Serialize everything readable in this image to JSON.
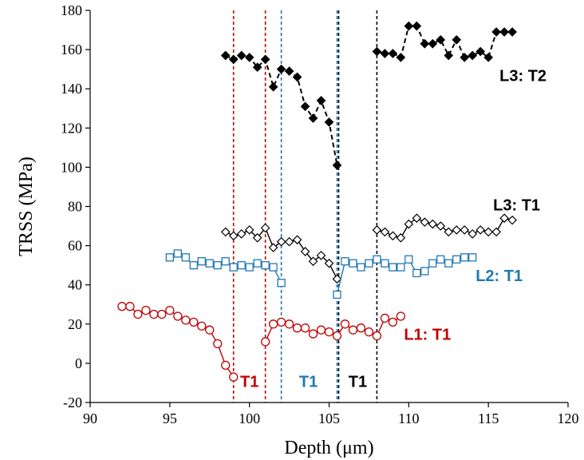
{
  "chart_data": {
    "type": "line",
    "title": "",
    "xlabel": "Depth (μm)",
    "ylabel": "TRSS (MPa)",
    "xlim": [
      90,
      120
    ],
    "ylim": [
      -20,
      180
    ],
    "xticks": [
      "90",
      "95",
      "100",
      "105",
      "110",
      "115",
      "120"
    ],
    "yticks": [
      "-20",
      "0",
      "20",
      "40",
      "60",
      "80",
      "100",
      "120",
      "140",
      "160",
      "180"
    ],
    "grid": false,
    "series": [
      {
        "name": "L3: T2",
        "color": "#000000",
        "marker": "diamond-filled",
        "line": "dashed",
        "segments": [
          {
            "x": [
              98.5,
              99.0,
              99.5,
              100.0,
              100.5,
              101.0,
              101.5,
              102.0,
              102.5,
              103.0,
              103.5,
              104.0,
              104.5,
              105.0,
              105.5
            ],
            "y": [
              157,
              155,
              157,
              156,
              151,
              155,
              141,
              150,
              149,
              146,
              131,
              125,
              134,
              123,
              101
            ]
          },
          {
            "x": [
              108.0,
              108.5,
              109.0,
              109.5,
              110.0,
              110.5,
              111.0,
              111.5,
              112.0,
              112.5,
              113.0,
              113.5,
              114.0,
              114.5,
              115.0,
              115.5,
              116.0,
              116.5
            ],
            "y": [
              159,
              158,
              158,
              156,
              172,
              172,
              163,
              163,
              165,
              157,
              165,
              156,
              157,
              159,
              156,
              169,
              169,
              169
            ]
          }
        ]
      },
      {
        "name": "L3: T1",
        "color": "#000000",
        "marker": "diamond-open",
        "line": "solid",
        "segments": [
          {
            "x": [
              98.5,
              99.0,
              99.5,
              100.0,
              100.5,
              101.0,
              101.5,
              102.0,
              102.5,
              103.0,
              103.5,
              104.0,
              104.5,
              105.0,
              105.5
            ],
            "y": [
              67,
              65,
              66,
              68,
              64,
              69,
              59,
              62,
              62,
              63,
              57,
              52,
              55,
              51,
              43
            ]
          },
          {
            "x": [
              108.0,
              108.5,
              109.0,
              109.5,
              110.0,
              110.5,
              111.0,
              111.5,
              112.0,
              112.5,
              113.0,
              113.5,
              114.0,
              114.5,
              115.0,
              115.5,
              116.0,
              116.5
            ],
            "y": [
              68,
              67,
              65,
              64,
              71,
              74,
              72,
              71,
              70,
              67,
              68,
              68,
              66,
              68,
              67,
              67,
              74,
              73
            ]
          }
        ]
      },
      {
        "name": "L2: T1",
        "color": "#1f77b4",
        "marker": "square-open",
        "line": "solid",
        "segments": [
          {
            "x": [
              95.0,
              95.5,
              96.0,
              96.5,
              97.0,
              97.5,
              98.0,
              98.5,
              99.0,
              99.5,
              100.0,
              100.5,
              101.0,
              101.5,
              102.0
            ],
            "y": [
              54,
              56,
              54,
              50,
              52,
              51,
              50,
              52,
              49,
              50,
              49,
              51,
              50,
              49,
              41
            ]
          },
          {
            "x": [
              105.5,
              106.0,
              106.5,
              107.0,
              107.5,
              108.0,
              108.5,
              109.0,
              109.5,
              110.0,
              110.5,
              111.0,
              111.5,
              112.0,
              112.5,
              113.0,
              113.5,
              114.0
            ],
            "y": [
              35,
              52,
              51,
              49,
              51,
              53,
              51,
              49,
              49,
              53,
              46,
              47,
              51,
              53,
              51,
              53,
              54,
              54
            ]
          }
        ]
      },
      {
        "name": "L1: T1",
        "color": "#c00000",
        "marker": "circle-open",
        "line": "solid",
        "segments": [
          {
            "x": [
              92.0,
              92.5,
              93.0,
              93.5,
              94.0,
              94.5,
              95.0,
              95.5,
              96.0,
              96.5,
              97.0,
              97.5,
              98.0,
              98.5,
              99.0
            ],
            "y": [
              29,
              29,
              25,
              27,
              25,
              25,
              27,
              24,
              22,
              21,
              19,
              17,
              10,
              -1,
              -7
            ]
          },
          {
            "x": [
              101.0,
              101.5,
              102.0,
              102.5,
              103.0,
              103.5,
              104.0,
              104.5,
              105.0,
              105.5,
              106.0,
              106.5,
              107.0,
              107.5,
              108.0,
              108.5,
              109.0,
              109.5
            ],
            "y": [
              11,
              20,
              21,
              20,
              18,
              18,
              15,
              17,
              16,
              14,
              20,
              17,
              18,
              16,
              14,
              23,
              21,
              24
            ]
          }
        ]
      }
    ],
    "series_labels": [
      {
        "text": "L3: T2",
        "color": "#000000",
        "x": 115.7,
        "y": 144
      },
      {
        "text": "L3: T1",
        "color": "#000000",
        "x": 115.3,
        "y": 78
      },
      {
        "text": "L2: T1",
        "color": "#1f77b4",
        "x": 114.2,
        "y": 42
      },
      {
        "text": "L1: T1",
        "color": "#c00000",
        "x": 109.7,
        "y": 12
      }
    ],
    "vertical_lines": [
      {
        "x": 99.0,
        "color": "#c00000"
      },
      {
        "x": 101.0,
        "color": "#c00000"
      },
      {
        "x": 102.0,
        "color": "#1f77b4"
      },
      {
        "x": 105.5,
        "color": "#1f77b4"
      },
      {
        "x": 105.6,
        "color": "#000000"
      },
      {
        "x": 108.0,
        "color": "#000000"
      }
    ],
    "vertical_line_labels": [
      {
        "text": "T1",
        "color": "#c00000",
        "x": 100.0,
        "y": -12
      },
      {
        "text": "T1",
        "color": "#1f77b4",
        "x": 103.7,
        "y": -12
      },
      {
        "text": "T1",
        "color": "#000000",
        "x": 106.8,
        "y": -12
      }
    ]
  }
}
